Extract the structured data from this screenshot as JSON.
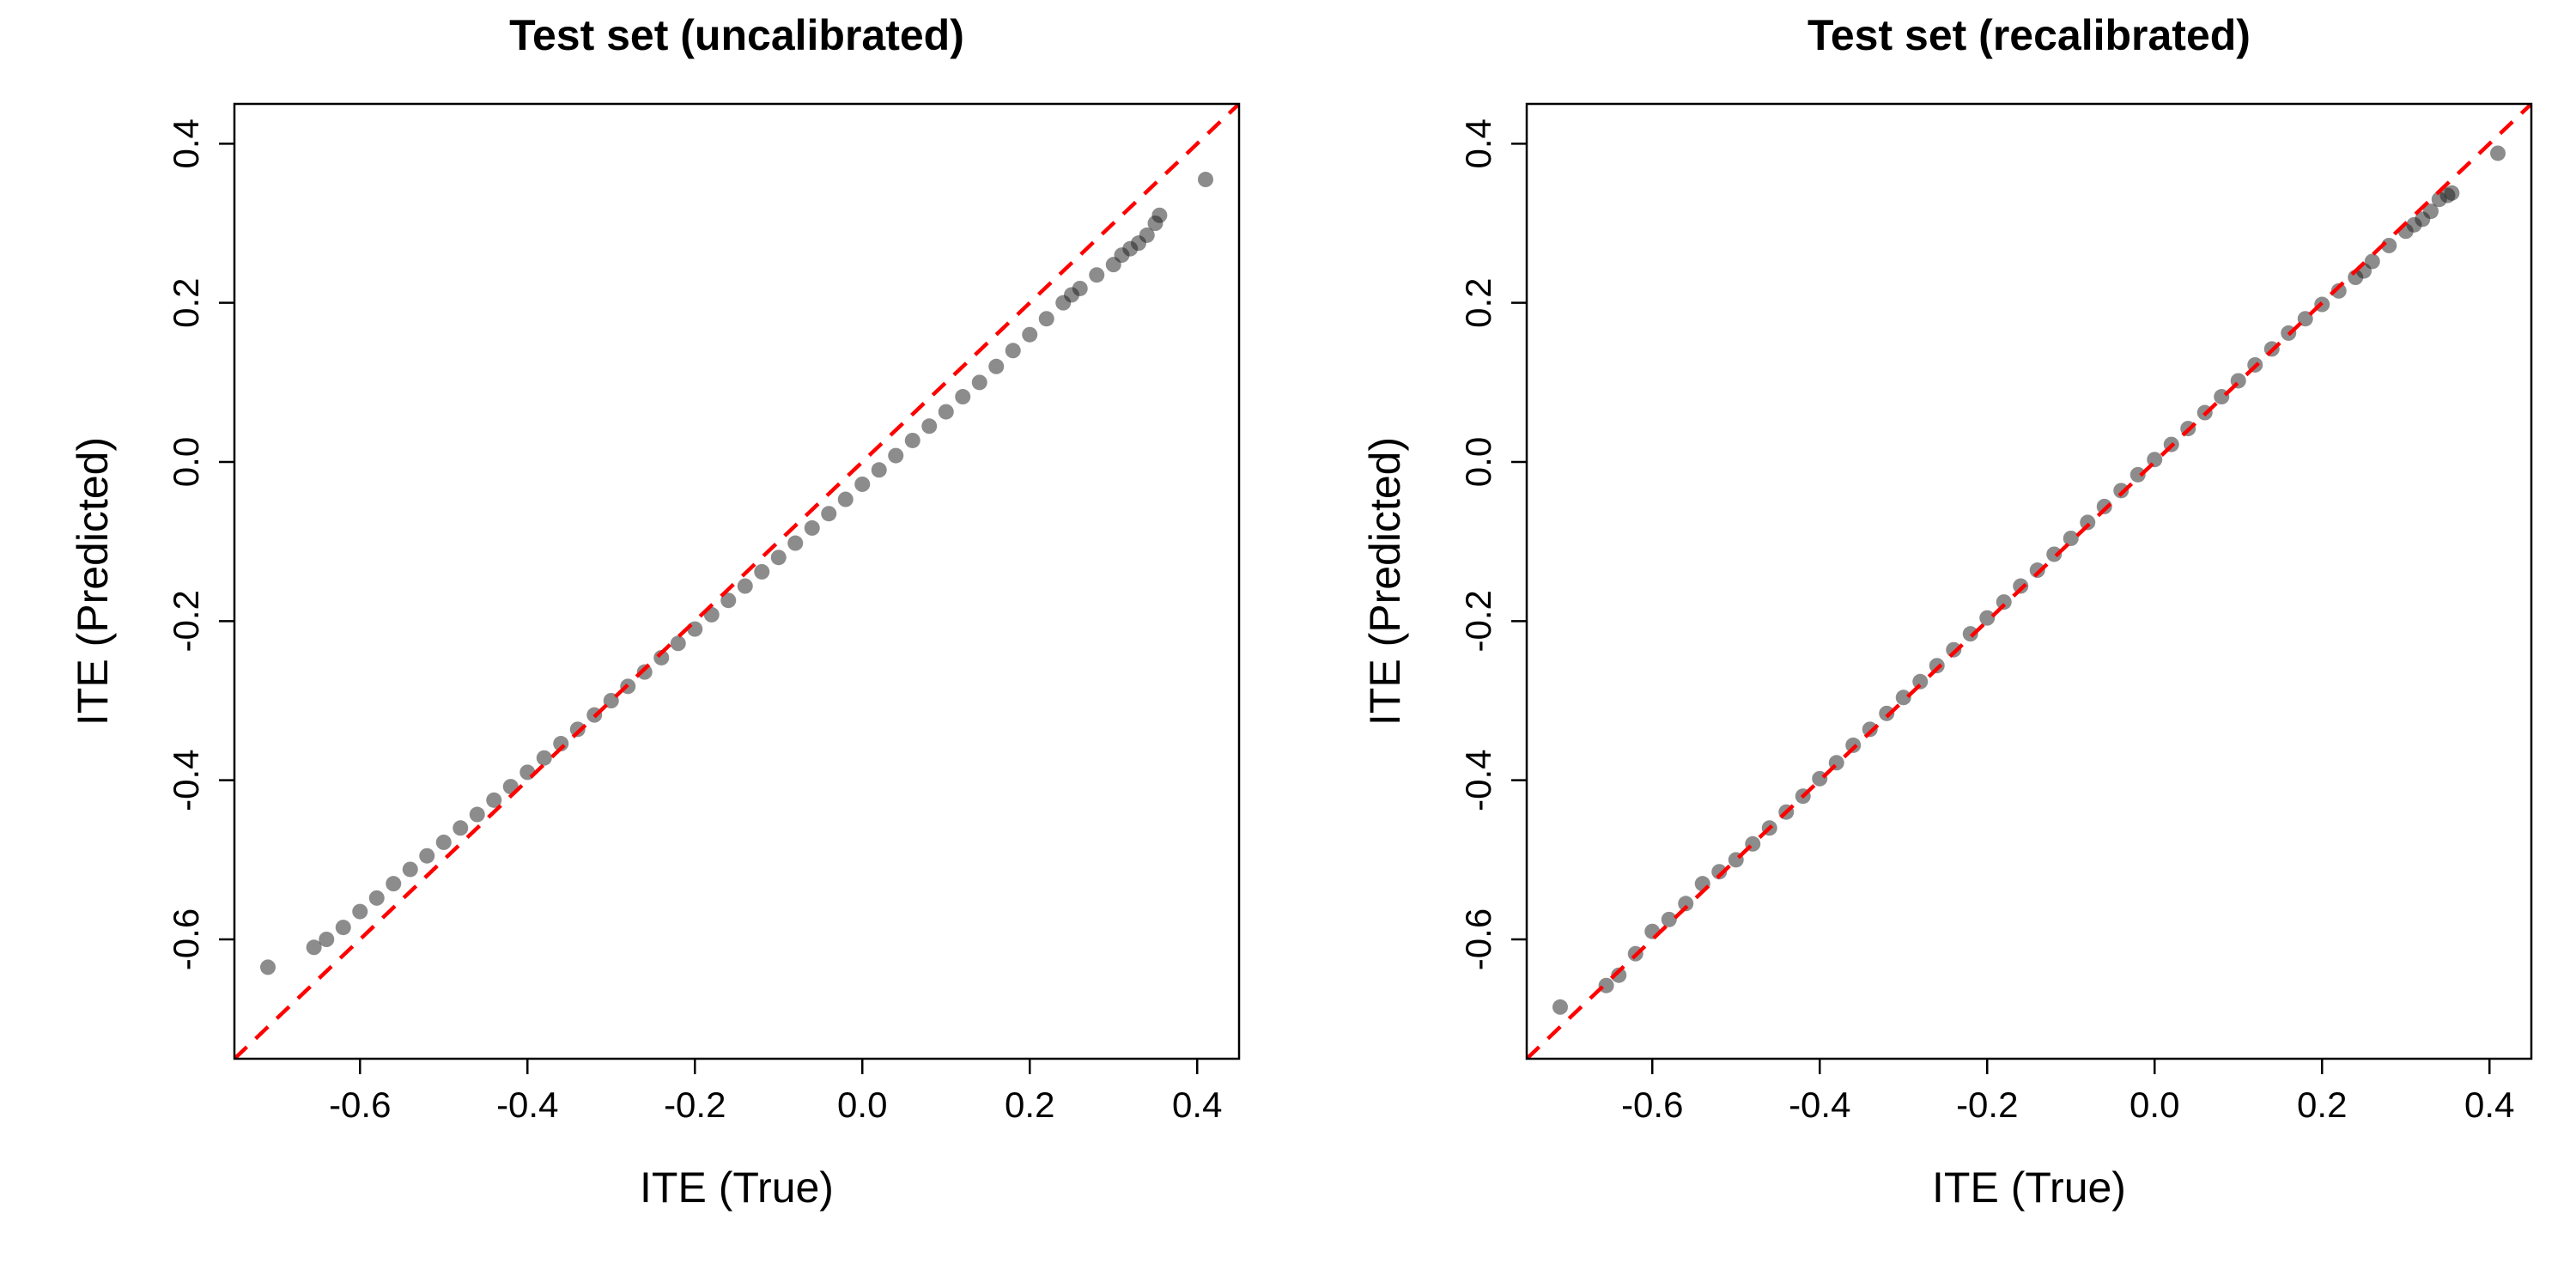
{
  "chart_data": [
    {
      "type": "scatter",
      "title": "Test set (uncalibrated)",
      "xlabel": "ITE (True)",
      "ylabel": "ITE (Predicted)",
      "xlim": [
        -0.75,
        0.45
      ],
      "ylim": [
        -0.75,
        0.45
      ],
      "xticks": [
        -0.6,
        -0.4,
        -0.2,
        0.0,
        0.2,
        0.4
      ],
      "yticks": [
        -0.6,
        -0.4,
        -0.2,
        0.0,
        0.2,
        0.4
      ],
      "tick_labels": [
        "-0.6",
        "-0.4",
        "-0.2",
        "0.0",
        "0.2",
        "0.4"
      ],
      "reference_line": {
        "slope": 1,
        "intercept": 0,
        "color": "#ff0000",
        "style": "dashed"
      },
      "grid": false,
      "point_color": "#1a1a1a",
      "points": [
        [
          -0.71,
          -0.635
        ],
        [
          -0.655,
          -0.61
        ],
        [
          -0.64,
          -0.6
        ],
        [
          -0.62,
          -0.585
        ],
        [
          -0.6,
          -0.565
        ],
        [
          -0.58,
          -0.548
        ],
        [
          -0.56,
          -0.53
        ],
        [
          -0.54,
          -0.512
        ],
        [
          -0.52,
          -0.495
        ],
        [
          -0.5,
          -0.478
        ],
        [
          -0.48,
          -0.46
        ],
        [
          -0.46,
          -0.443
        ],
        [
          -0.44,
          -0.425
        ],
        [
          -0.42,
          -0.408
        ],
        [
          -0.4,
          -0.39
        ],
        [
          -0.38,
          -0.372
        ],
        [
          -0.36,
          -0.354
        ],
        [
          -0.34,
          -0.336
        ],
        [
          -0.32,
          -0.318
        ],
        [
          -0.3,
          -0.3
        ],
        [
          -0.28,
          -0.282
        ],
        [
          -0.26,
          -0.264
        ],
        [
          -0.24,
          -0.246
        ],
        [
          -0.22,
          -0.228
        ],
        [
          -0.2,
          -0.21
        ],
        [
          -0.18,
          -0.192
        ],
        [
          -0.16,
          -0.174
        ],
        [
          -0.14,
          -0.156
        ],
        [
          -0.12,
          -0.138
        ],
        [
          -0.1,
          -0.12
        ],
        [
          -0.08,
          -0.102
        ],
        [
          -0.06,
          -0.083
        ],
        [
          -0.04,
          -0.065
        ],
        [
          -0.02,
          -0.047
        ],
        [
          0.0,
          -0.028
        ],
        [
          0.02,
          -0.01
        ],
        [
          0.04,
          0.008
        ],
        [
          0.06,
          0.027
        ],
        [
          0.08,
          0.045
        ],
        [
          0.1,
          0.063
        ],
        [
          0.12,
          0.082
        ],
        [
          0.14,
          0.1
        ],
        [
          0.16,
          0.12
        ],
        [
          0.18,
          0.14
        ],
        [
          0.2,
          0.16
        ],
        [
          0.22,
          0.18
        ],
        [
          0.24,
          0.2
        ],
        [
          0.25,
          0.21
        ],
        [
          0.26,
          0.218
        ],
        [
          0.28,
          0.235
        ],
        [
          0.3,
          0.248
        ],
        [
          0.31,
          0.26
        ],
        [
          0.32,
          0.268
        ],
        [
          0.33,
          0.275
        ],
        [
          0.34,
          0.285
        ],
        [
          0.35,
          0.3
        ],
        [
          0.355,
          0.31
        ],
        [
          0.41,
          0.355
        ]
      ]
    },
    {
      "type": "scatter",
      "title": "Test set (recalibrated)",
      "xlabel": "ITE (True)",
      "ylabel": "ITE (Predicted)",
      "xlim": [
        -0.75,
        0.45
      ],
      "ylim": [
        -0.75,
        0.45
      ],
      "xticks": [
        -0.6,
        -0.4,
        -0.2,
        0.0,
        0.2,
        0.4
      ],
      "yticks": [
        -0.6,
        -0.4,
        -0.2,
        0.0,
        0.2,
        0.4
      ],
      "tick_labels": [
        "-0.6",
        "-0.4",
        "-0.2",
        "0.0",
        "0.2",
        "0.4"
      ],
      "reference_line": {
        "slope": 1,
        "intercept": 0,
        "color": "#ff0000",
        "style": "dashed"
      },
      "grid": false,
      "point_color": "#1a1a1a",
      "points": [
        [
          -0.71,
          -0.685
        ],
        [
          -0.655,
          -0.658
        ],
        [
          -0.64,
          -0.645
        ],
        [
          -0.62,
          -0.618
        ],
        [
          -0.6,
          -0.59
        ],
        [
          -0.58,
          -0.575
        ],
        [
          -0.56,
          -0.555
        ],
        [
          -0.54,
          -0.53
        ],
        [
          -0.52,
          -0.515
        ],
        [
          -0.5,
          -0.5
        ],
        [
          -0.48,
          -0.48
        ],
        [
          -0.46,
          -0.46
        ],
        [
          -0.44,
          -0.44
        ],
        [
          -0.42,
          -0.42
        ],
        [
          -0.4,
          -0.398
        ],
        [
          -0.38,
          -0.378
        ],
        [
          -0.36,
          -0.356
        ],
        [
          -0.34,
          -0.336
        ],
        [
          -0.32,
          -0.316
        ],
        [
          -0.3,
          -0.296
        ],
        [
          -0.28,
          -0.276
        ],
        [
          -0.26,
          -0.256
        ],
        [
          -0.24,
          -0.236
        ],
        [
          -0.22,
          -0.216
        ],
        [
          -0.2,
          -0.196
        ],
        [
          -0.18,
          -0.176
        ],
        [
          -0.16,
          -0.156
        ],
        [
          -0.14,
          -0.136
        ],
        [
          -0.12,
          -0.116
        ],
        [
          -0.1,
          -0.096
        ],
        [
          -0.08,
          -0.076
        ],
        [
          -0.06,
          -0.056
        ],
        [
          -0.04,
          -0.036
        ],
        [
          -0.02,
          -0.016
        ],
        [
          0.0,
          0.003
        ],
        [
          0.02,
          0.022
        ],
        [
          0.04,
          0.042
        ],
        [
          0.06,
          0.062
        ],
        [
          0.08,
          0.082
        ],
        [
          0.1,
          0.102
        ],
        [
          0.12,
          0.122
        ],
        [
          0.14,
          0.142
        ],
        [
          0.16,
          0.162
        ],
        [
          0.18,
          0.18
        ],
        [
          0.2,
          0.198
        ],
        [
          0.22,
          0.215
        ],
        [
          0.24,
          0.232
        ],
        [
          0.25,
          0.24
        ],
        [
          0.26,
          0.252
        ],
        [
          0.28,
          0.272
        ],
        [
          0.3,
          0.29
        ],
        [
          0.31,
          0.298
        ],
        [
          0.32,
          0.305
        ],
        [
          0.33,
          0.315
        ],
        [
          0.34,
          0.33
        ],
        [
          0.35,
          0.335
        ],
        [
          0.355,
          0.338
        ],
        [
          0.41,
          0.388
        ]
      ]
    }
  ]
}
